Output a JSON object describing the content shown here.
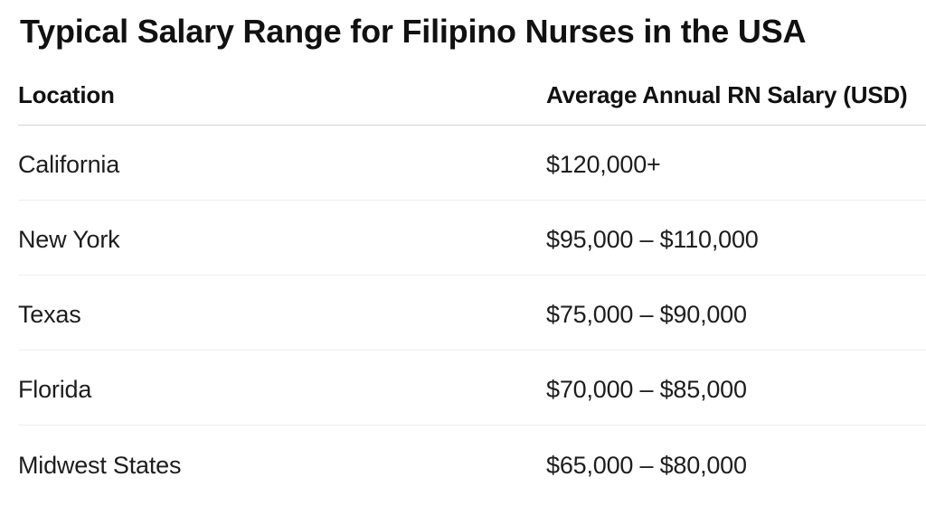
{
  "title": "Typical Salary Range for Filipino Nurses in the USA",
  "table": {
    "columns": {
      "location": "Location",
      "salary": "Average Annual RN Salary (USD)"
    },
    "rows": [
      {
        "location": "California",
        "salary": "$120,000+"
      },
      {
        "location": "New York",
        "salary": "$95,000 – $110,000"
      },
      {
        "location": "Texas",
        "salary": "$75,000 – $90,000"
      },
      {
        "location": "Florida",
        "salary": "$70,000 – $85,000"
      },
      {
        "location": "Midwest States",
        "salary": "$65,000 – $80,000"
      }
    ]
  },
  "chart_data": {
    "type": "table",
    "title": "Typical Salary Range for Filipino Nurses in the USA",
    "columns": [
      "Location",
      "Average Annual RN Salary (USD)"
    ],
    "rows": [
      [
        "California",
        "$120,000+"
      ],
      [
        "New York",
        "$95,000 – $110,000"
      ],
      [
        "Texas",
        "$75,000 – $90,000"
      ],
      [
        "Florida",
        "$70,000 – $85,000"
      ],
      [
        "Midwest States",
        "$65,000 – $80,000"
      ]
    ],
    "salary_ranges_usd": [
      {
        "location": "California",
        "min": 120000,
        "max": null
      },
      {
        "location": "New York",
        "min": 95000,
        "max": 110000
      },
      {
        "location": "Texas",
        "min": 75000,
        "max": 90000
      },
      {
        "location": "Florida",
        "min": 70000,
        "max": 85000
      },
      {
        "location": "Midwest States",
        "min": 65000,
        "max": 80000
      }
    ]
  },
  "colors": {
    "background": "#ffffff",
    "title_text": "#111111",
    "header_text": "#111111",
    "body_text": "#1d1d1f",
    "header_divider": "#d2d2d7",
    "row_divider": "#eeeef0"
  }
}
